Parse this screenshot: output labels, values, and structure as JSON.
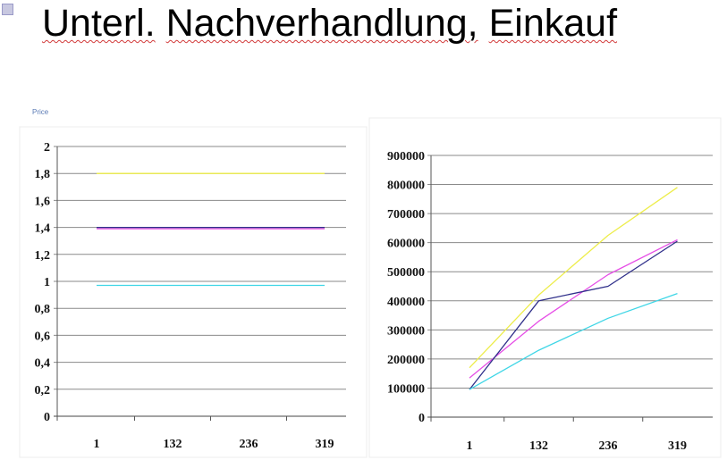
{
  "slide": {
    "title_words": [
      "Unterl.",
      "Nachverhandlung,",
      "Einkauf"
    ]
  },
  "colors": {
    "yellow": "#eded4a",
    "magenta": "#e64ee6",
    "navy": "#2f2f8a",
    "cyan": "#3fd6e6"
  },
  "chart_data": [
    {
      "type": "line",
      "title": "",
      "annotation": "Price",
      "categories": [
        "1",
        "132",
        "236",
        "319"
      ],
      "ylim": [
        0,
        2
      ],
      "yticks": [
        "0",
        "0,2",
        "0,4",
        "0,6",
        "0,8",
        "1",
        "1,2",
        "1,4",
        "1,6",
        "1,8",
        "2"
      ],
      "grid": true,
      "series": [
        {
          "color": "#eded4a",
          "values": [
            1.8,
            1.8,
            1.8,
            1.8
          ]
        },
        {
          "color": "#e64ee6",
          "values": [
            1.39,
            1.39,
            1.39,
            1.39
          ]
        },
        {
          "color": "#2f2f8a",
          "values": [
            1.4,
            1.4,
            1.4,
            1.4
          ]
        },
        {
          "color": "#3fd6e6",
          "values": [
            0.97,
            0.97,
            0.97,
            0.97
          ]
        }
      ]
    },
    {
      "type": "line",
      "title": "",
      "categories": [
        "1",
        "132",
        "236",
        "319"
      ],
      "ylim": [
        0,
        900000
      ],
      "yticks": [
        "0",
        "100000",
        "200000",
        "300000",
        "400000",
        "500000",
        "600000",
        "700000",
        "800000",
        "900000"
      ],
      "grid": true,
      "series": [
        {
          "color": "#eded4a",
          "values": [
            170000,
            420000,
            625000,
            790000
          ]
        },
        {
          "color": "#e64ee6",
          "values": [
            135000,
            330000,
            490000,
            610000
          ]
        },
        {
          "color": "#2f2f8a",
          "values": [
            95000,
            400000,
            450000,
            605000
          ]
        },
        {
          "color": "#3fd6e6",
          "values": [
            95000,
            230000,
            340000,
            425000
          ]
        }
      ]
    }
  ]
}
